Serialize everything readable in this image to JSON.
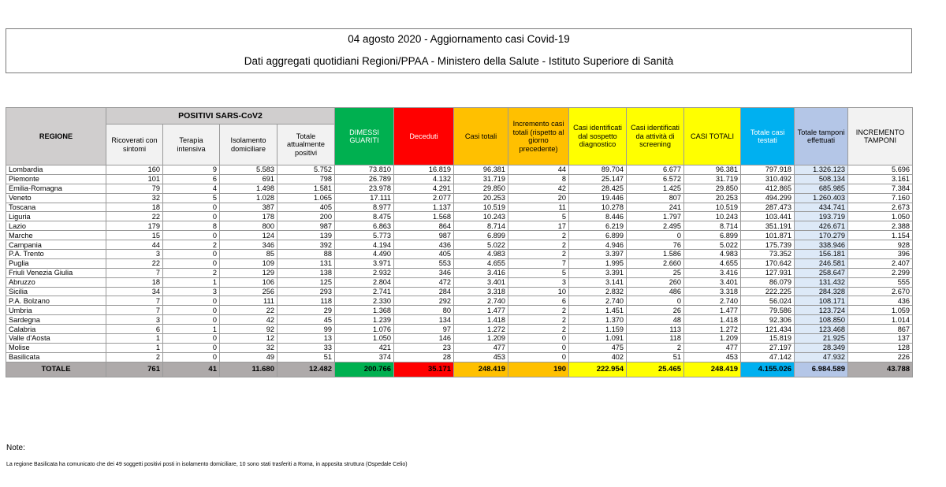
{
  "header": {
    "title": "04 agosto 2020 - Aggiornamento casi Covid-19",
    "subtitle": "Dati aggregati quotidiani Regioni/PPAA - Ministero della Salute - Istituto Superiore di Sanità"
  },
  "table": {
    "group_label": "POSITIVI SARS-CoV2",
    "columns": [
      "REGIONE",
      "Ricoverati con sintomi",
      "Terapia intensiva",
      "Isolamento domiciliare",
      "Totale attualmente positivi",
      "DIMESSI GUARITI",
      "Deceduti",
      "Casi totali",
      "Incremento casi totali (rispetto al giorno precedente)",
      "Casi identificati dal sospetto diagnostico",
      "Casi identificati da attività di screening",
      "CASI TOTALI",
      "Totale casi testati",
      "Totale tamponi effettuati",
      "INCREMENTO TAMPONI"
    ],
    "rows": [
      [
        "Lombardia",
        "160",
        "9",
        "5.583",
        "5.752",
        "73.810",
        "16.819",
        "96.381",
        "44",
        "89.704",
        "6.677",
        "96.381",
        "797.918",
        "1.326.123",
        "5.696"
      ],
      [
        "Piemonte",
        "101",
        "6",
        "691",
        "798",
        "26.789",
        "4.132",
        "31.719",
        "8",
        "25.147",
        "6.572",
        "31.719",
        "310.492",
        "508.134",
        "3.161"
      ],
      [
        "Emilia-Romagna",
        "79",
        "4",
        "1.498",
        "1.581",
        "23.978",
        "4.291",
        "29.850",
        "42",
        "28.425",
        "1.425",
        "29.850",
        "412.865",
        "685.985",
        "7.384"
      ],
      [
        "Veneto",
        "32",
        "5",
        "1.028",
        "1.065",
        "17.111",
        "2.077",
        "20.253",
        "20",
        "19.446",
        "807",
        "20.253",
        "494.299",
        "1.260.403",
        "7.160"
      ],
      [
        "Toscana",
        "18",
        "0",
        "387",
        "405",
        "8.977",
        "1.137",
        "10.519",
        "11",
        "10.278",
        "241",
        "10.519",
        "287.473",
        "434.741",
        "2.673"
      ],
      [
        "Liguria",
        "22",
        "0",
        "178",
        "200",
        "8.475",
        "1.568",
        "10.243",
        "5",
        "8.446",
        "1.797",
        "10.243",
        "103.441",
        "193.719",
        "1.050"
      ],
      [
        "Lazio",
        "179",
        "8",
        "800",
        "987",
        "6.863",
        "864",
        "8.714",
        "17",
        "6.219",
        "2.495",
        "8.714",
        "351.191",
        "426.671",
        "2.388"
      ],
      [
        "Marche",
        "15",
        "0",
        "124",
        "139",
        "5.773",
        "987",
        "6.899",
        "2",
        "6.899",
        "0",
        "6.899",
        "101.871",
        "170.279",
        "1.154"
      ],
      [
        "Campania",
        "44",
        "2",
        "346",
        "392",
        "4.194",
        "436",
        "5.022",
        "2",
        "4.946",
        "76",
        "5.022",
        "175.739",
        "338.946",
        "928"
      ],
      [
        "P.A. Trento",
        "3",
        "0",
        "85",
        "88",
        "4.490",
        "405",
        "4.983",
        "2",
        "3.397",
        "1.586",
        "4.983",
        "73.352",
        "156.181",
        "396"
      ],
      [
        "Puglia",
        "22",
        "0",
        "109",
        "131",
        "3.971",
        "553",
        "4.655",
        "7",
        "1.995",
        "2.660",
        "4.655",
        "170.642",
        "246.581",
        "2.407"
      ],
      [
        "Friuli Venezia Giulia",
        "7",
        "2",
        "129",
        "138",
        "2.932",
        "346",
        "3.416",
        "5",
        "3.391",
        "25",
        "3.416",
        "127.931",
        "258.647",
        "2.299"
      ],
      [
        "Abruzzo",
        "18",
        "1",
        "106",
        "125",
        "2.804",
        "472",
        "3.401",
        "3",
        "3.141",
        "260",
        "3.401",
        "86.079",
        "131.432",
        "555"
      ],
      [
        "Sicilia",
        "34",
        "3",
        "256",
        "293",
        "2.741",
        "284",
        "3.318",
        "10",
        "2.832",
        "486",
        "3.318",
        "222.225",
        "284.328",
        "2.670"
      ],
      [
        "P.A. Bolzano",
        "7",
        "0",
        "111",
        "118",
        "2.330",
        "292",
        "2.740",
        "6",
        "2.740",
        "0",
        "2.740",
        "56.024",
        "108.171",
        "436"
      ],
      [
        "Umbria",
        "7",
        "0",
        "22",
        "29",
        "1.368",
        "80",
        "1.477",
        "2",
        "1.451",
        "26",
        "1.477",
        "79.586",
        "123.724",
        "1.059"
      ],
      [
        "Sardegna",
        "3",
        "0",
        "42",
        "45",
        "1.239",
        "134",
        "1.418",
        "2",
        "1.370",
        "48",
        "1.418",
        "92.306",
        "108.850",
        "1.014"
      ],
      [
        "Calabria",
        "6",
        "1",
        "92",
        "99",
        "1.076",
        "97",
        "1.272",
        "2",
        "1.159",
        "113",
        "1.272",
        "121.434",
        "123.468",
        "867"
      ],
      [
        "Valle d'Aosta",
        "1",
        "0",
        "12",
        "13",
        "1.050",
        "146",
        "1.209",
        "0",
        "1.091",
        "118",
        "1.209",
        "15.819",
        "21.925",
        "137"
      ],
      [
        "Molise",
        "1",
        "0",
        "32",
        "33",
        "421",
        "23",
        "477",
        "0",
        "475",
        "2",
        "477",
        "27.197",
        "28.349",
        "128"
      ],
      [
        "Basilicata",
        "2",
        "0",
        "49",
        "51",
        "374",
        "28",
        "453",
        "0",
        "402",
        "51",
        "453",
        "47.142",
        "47.932",
        "226"
      ]
    ],
    "total": [
      "TOTALE",
      "761",
      "41",
      "11.680",
      "12.482",
      "200.766",
      "35.171",
      "248.419",
      "190",
      "222.954",
      "25.465",
      "248.419",
      "4.155.026",
      "6.984.589",
      "43.788"
    ]
  },
  "colors": {
    "dimessi": "#00b050",
    "deceduti": "#ff0000",
    "casi_totali": "#ffc000",
    "casi_totali_yellow": "#ffff00",
    "casi_testati": "#00b0f0",
    "tamponi": "#b4c6e7",
    "header_grey": "#d0cece",
    "total_grey": "#aeaaaa"
  },
  "notes": {
    "label": "Note:",
    "text": "La regione Basilicata ha comunicato che dei 49 soggetti positivi posti in isolamento domiciliare, 10 sono stati trasferiti a Roma, in apposita struttura (Ospedale Celio)"
  }
}
